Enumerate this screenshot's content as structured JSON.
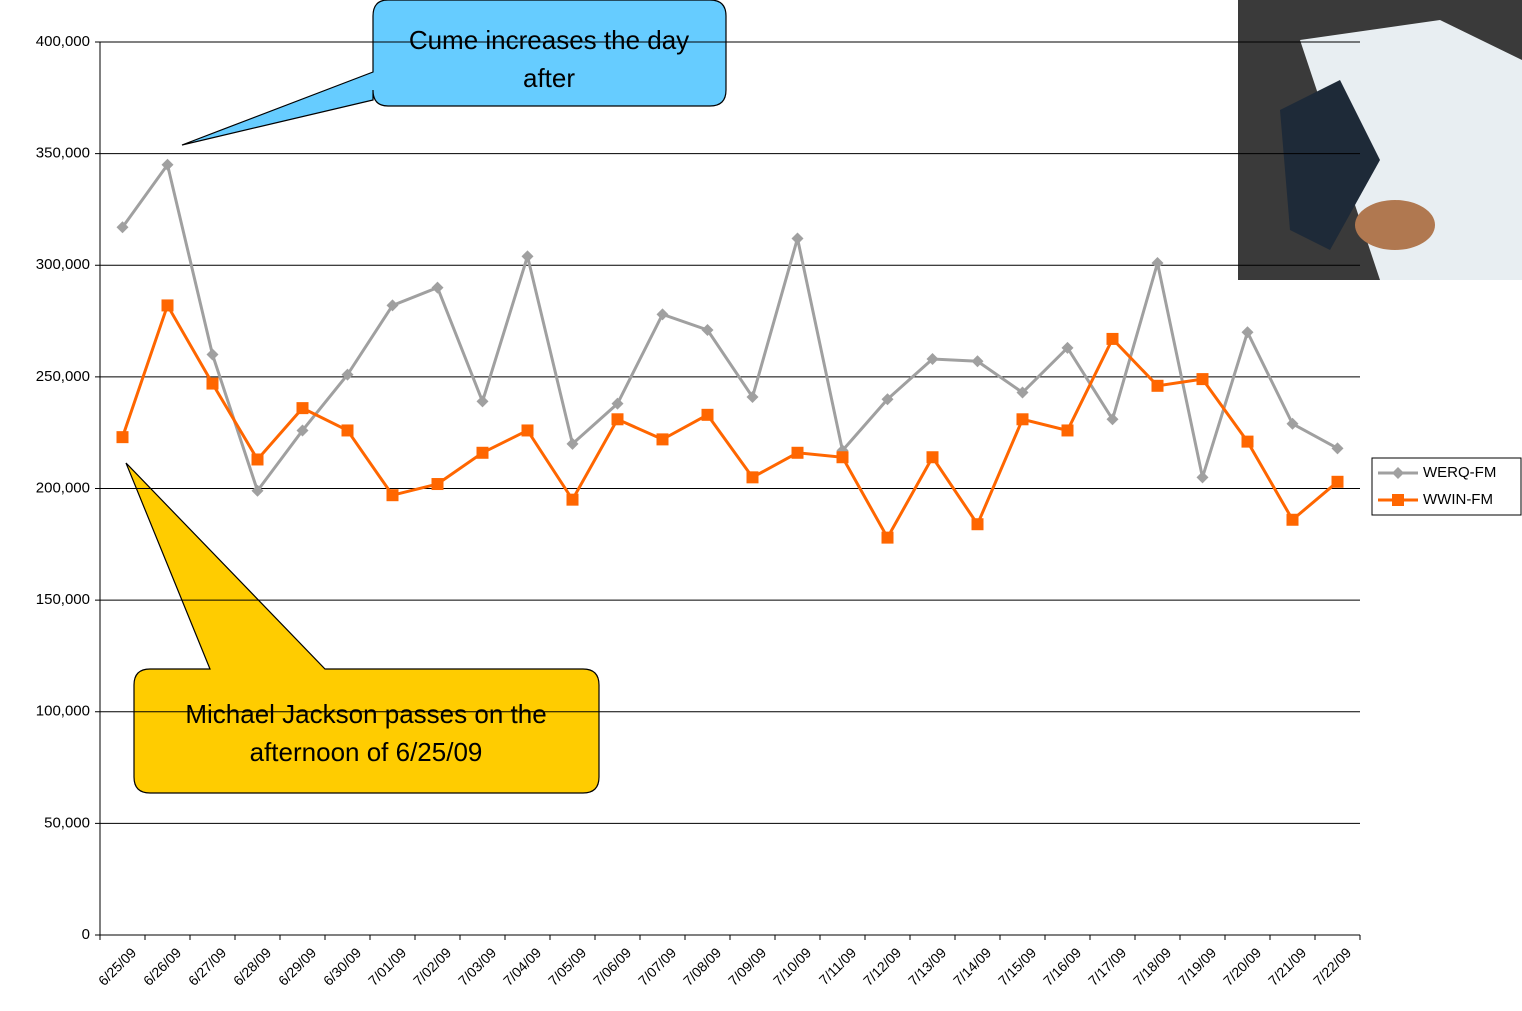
{
  "chart_data": {
    "type": "line",
    "categories": [
      "6/25/09",
      "6/26/09",
      "6/27/09",
      "6/28/09",
      "6/29/09",
      "6/30/09",
      "7/01/09",
      "7/02/09",
      "7/03/09",
      "7/04/09",
      "7/05/09",
      "7/06/09",
      "7/07/09",
      "7/08/09",
      "7/09/09",
      "7/10/09",
      "7/11/09",
      "7/12/09",
      "7/13/09",
      "7/14/09",
      "7/15/09",
      "7/16/09",
      "7/17/09",
      "7/18/09",
      "7/19/09",
      "7/20/09",
      "7/21/09",
      "7/22/09"
    ],
    "series": [
      {
        "name": "WERQ-FM",
        "color": "#a0a0a0",
        "marker": "diamond",
        "values": [
          317000,
          345000,
          260000,
          199000,
          226000,
          251000,
          282000,
          290000,
          239000,
          304000,
          220000,
          238000,
          278000,
          271000,
          241000,
          312000,
          217000,
          240000,
          258000,
          257000,
          243000,
          263000,
          231000,
          301000,
          205000,
          270000,
          229000,
          218000
        ]
      },
      {
        "name": "WWIN-FM",
        "color": "#ff6600",
        "marker": "square",
        "values": [
          223000,
          282000,
          247000,
          213000,
          236000,
          226000,
          197000,
          202000,
          216000,
          226000,
          195000,
          231000,
          222000,
          233000,
          205000,
          216000,
          214000,
          178000,
          214000,
          184000,
          231000,
          226000,
          267000,
          246000,
          249000,
          221000,
          186000,
          203000
        ]
      }
    ],
    "ylim": [
      0,
      400000
    ],
    "yticks": [
      0,
      {
        "value": 50000,
        "label": "50,000"
      },
      {
        "value": 100000,
        "label": "100,000"
      },
      {
        "value": 150000,
        "label": "150,000"
      },
      {
        "value": 200000,
        "label": "200,000"
      },
      {
        "value": 250000,
        "label": "250,000"
      },
      {
        "value": 300000,
        "label": "300,000"
      },
      {
        "value": 350000,
        "label": "350,000"
      },
      {
        "value": 400000,
        "label": "400,000"
      }
    ],
    "grid": true,
    "legend": "right",
    "annotations": [
      {
        "text": "Cume increases the day after"
      },
      {
        "text": "Michael Jackson passes on the afternoon of 6/25/09"
      }
    ]
  }
}
